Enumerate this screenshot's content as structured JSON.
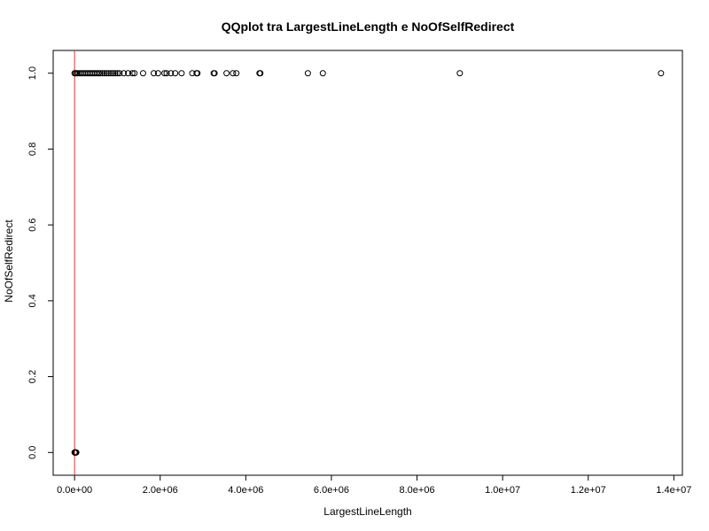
{
  "chart_data": {
    "type": "scatter",
    "title": "QQplot tra LargestLineLength e NoOfSelfRedirect",
    "xlabel": "LargestLineLength",
    "ylabel": "NoOfSelfRedirect",
    "xlim": [
      -500000,
      14200000
    ],
    "ylim": [
      -0.06,
      1.06
    ],
    "x_ticks": [
      0,
      2000000,
      4000000,
      6000000,
      8000000,
      10000000,
      12000000,
      14000000
    ],
    "x_tick_labels": [
      "0.0e+00",
      "2.0e+06",
      "4.0e+06",
      "6.0e+06",
      "8.0e+06",
      "1.0e+07",
      "1.2e+07",
      "1.4e+07"
    ],
    "y_ticks": [
      0,
      0.2,
      0.4,
      0.6,
      0.8,
      1.0
    ],
    "y_tick_labels": [
      "0.0",
      "0.2",
      "0.4",
      "0.6",
      "0.8",
      "1.0"
    ],
    "reference_line": {
      "x": 0,
      "color": "#e03030"
    },
    "point_color": "#000000",
    "grid": false,
    "series": [
      {
        "points": [
          [
            0,
            0
          ],
          [
            5000,
            0
          ],
          [
            10000,
            0
          ],
          [
            15000,
            0
          ],
          [
            20000,
            0
          ],
          [
            25000,
            0
          ],
          [
            30000,
            0
          ],
          [
            40000,
            0
          ],
          [
            0,
            1
          ],
          [
            20000,
            1
          ],
          [
            50000,
            1
          ],
          [
            80000,
            1
          ],
          [
            120000,
            1
          ],
          [
            160000,
            1
          ],
          [
            200000,
            1
          ],
          [
            240000,
            1
          ],
          [
            280000,
            1
          ],
          [
            320000,
            1
          ],
          [
            360000,
            1
          ],
          [
            400000,
            1
          ],
          [
            440000,
            1
          ],
          [
            480000,
            1
          ],
          [
            520000,
            1
          ],
          [
            560000,
            1
          ],
          [
            600000,
            1
          ],
          [
            650000,
            1
          ],
          [
            700000,
            1
          ],
          [
            750000,
            1
          ],
          [
            800000,
            1
          ],
          [
            850000,
            1
          ],
          [
            900000,
            1
          ],
          [
            950000,
            1
          ],
          [
            1000000,
            1
          ],
          [
            1050000,
            1
          ],
          [
            1150000,
            1
          ],
          [
            1250000,
            1
          ],
          [
            1350000,
            1
          ],
          [
            1400000,
            1
          ],
          [
            1600000,
            1
          ],
          [
            1850000,
            1
          ],
          [
            1950000,
            1
          ],
          [
            2100000,
            1
          ],
          [
            2150000,
            1
          ],
          [
            2250000,
            1
          ],
          [
            2350000,
            1
          ],
          [
            2500000,
            1
          ],
          [
            2750000,
            1
          ],
          [
            2850000,
            1
          ],
          [
            2870000,
            1
          ],
          [
            3250000,
            1
          ],
          [
            3270000,
            1
          ],
          [
            3550000,
            1
          ],
          [
            3700000,
            1
          ],
          [
            3780000,
            1
          ],
          [
            4320000,
            1
          ],
          [
            4340000,
            1
          ],
          [
            5450000,
            1
          ],
          [
            5800000,
            1
          ],
          [
            9000000,
            1
          ],
          [
            13700000,
            1
          ]
        ]
      }
    ]
  }
}
